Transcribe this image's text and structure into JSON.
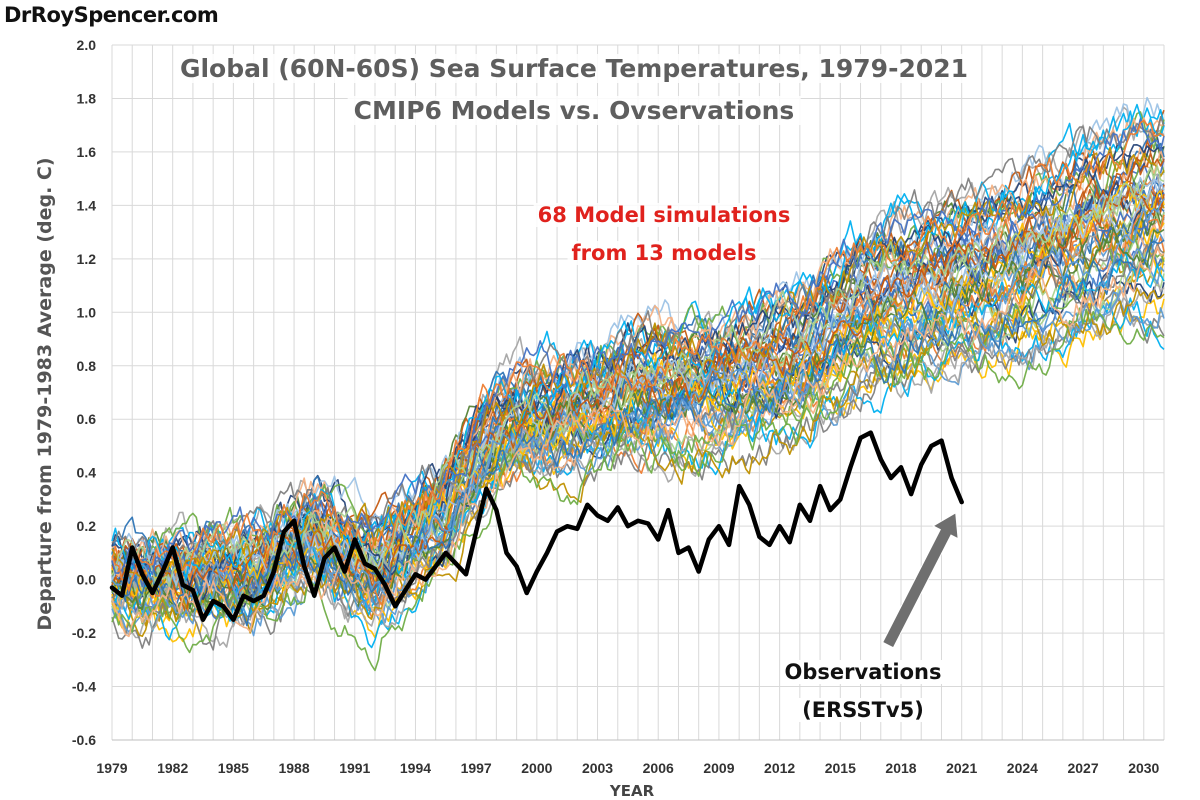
{
  "watermark": "DrRoySpencer.com",
  "chart_data": {
    "type": "line",
    "title": "Global (60N-60S) Sea Surface Temperatures, 1979-2021",
    "subtitle": "CMIP6 Models vs. Ovservations",
    "ylabel": "Departure from 1979-1983 Average (deg. C)",
    "xlabel": "YEAR",
    "xlim": [
      1979,
      2031
    ],
    "ylim": [
      -0.6,
      2.0
    ],
    "x_ticks": [
      "1979",
      "1982",
      "1985",
      "1988",
      "1991",
      "1994",
      "1997",
      "2000",
      "2003",
      "2006",
      "2009",
      "2012",
      "2015",
      "2018",
      "2021",
      "2024",
      "2027",
      "2030"
    ],
    "y_ticks": [
      "2.0",
      "1.8",
      "1.6",
      "1.4",
      "1.2",
      "1.0",
      "0.8",
      "0.6",
      "0.4",
      "0.2",
      "0.0",
      "-0.2",
      "-0.4",
      "-0.6"
    ],
    "grid": true,
    "annotations": [
      {
        "text_line1": "68 Model simulations",
        "text_line2": "from 13 models",
        "color": "#e0221d"
      },
      {
        "text_line1": "Observations",
        "text_line2": "(ERSSTv5)",
        "arrow_to": [
          2021.0,
          0.28
        ],
        "arrow_color": "#6f6f6f"
      }
    ],
    "model_ensemble": {
      "count": 68,
      "models": 13,
      "x_range": [
        1979,
        2031
      ],
      "palette": [
        "#4472c4",
        "#5b9bd5",
        "#ed7d31",
        "#f4b183",
        "#ffc000",
        "#a5a5a5",
        "#70ad47",
        "#548235",
        "#264478",
        "#9dc3e6",
        "#c55a11",
        "#2e75b6",
        "#00b0f0",
        "#bf9000",
        "#7f7f7f",
        "#a9d18e"
      ],
      "mean_trend_nodes": [
        [
          1979,
          0.0
        ],
        [
          1986,
          0.02
        ],
        [
          1989,
          0.18
        ],
        [
          1992,
          0.02
        ],
        [
          1995,
          0.22
        ],
        [
          1998,
          0.55
        ],
        [
          2002,
          0.62
        ],
        [
          2005,
          0.7
        ],
        [
          2009,
          0.72
        ],
        [
          2013,
          0.82
        ],
        [
          2016,
          1.0
        ],
        [
          2020,
          1.08
        ],
        [
          2024,
          1.18
        ],
        [
          2028,
          1.3
        ],
        [
          2031,
          1.38
        ]
      ],
      "spread_nodes": [
        [
          1979,
          0.14
        ],
        [
          1995,
          0.2
        ],
        [
          2005,
          0.24
        ],
        [
          2015,
          0.3
        ],
        [
          2031,
          0.42
        ]
      ]
    },
    "series": [
      {
        "name": "Observations (ERSSTv5)",
        "color": "#000000",
        "x": [
          1979.0,
          1979.5,
          1980.0,
          1980.5,
          1981.0,
          1981.5,
          1982.0,
          1982.5,
          1983.0,
          1983.5,
          1984.0,
          1984.5,
          1985.0,
          1985.5,
          1986.0,
          1986.5,
          1987.0,
          1987.5,
          1988.0,
          1988.5,
          1989.0,
          1989.5,
          1990.0,
          1990.5,
          1991.0,
          1991.5,
          1992.0,
          1992.5,
          1993.0,
          1993.5,
          1994.0,
          1994.5,
          1995.0,
          1995.5,
          1996.0,
          1996.5,
          1997.0,
          1997.5,
          1998.0,
          1998.5,
          1999.0,
          1999.5,
          2000.0,
          2000.5,
          2001.0,
          2001.5,
          2002.0,
          2002.5,
          2003.0,
          2003.5,
          2004.0,
          2004.5,
          2005.0,
          2005.5,
          2006.0,
          2006.5,
          2007.0,
          2007.5,
          2008.0,
          2008.5,
          2009.0,
          2009.5,
          2010.0,
          2010.5,
          2011.0,
          2011.5,
          2012.0,
          2012.5,
          2013.0,
          2013.5,
          2014.0,
          2014.5,
          2015.0,
          2015.5,
          2016.0,
          2016.5,
          2017.0,
          2017.5,
          2018.0,
          2018.5,
          2019.0,
          2019.5,
          2020.0,
          2020.5,
          2021.0
        ],
        "y": [
          -0.03,
          -0.06,
          0.12,
          0.02,
          -0.05,
          0.03,
          0.12,
          -0.02,
          -0.04,
          -0.15,
          -0.08,
          -0.1,
          -0.15,
          -0.06,
          -0.08,
          -0.06,
          0.03,
          0.18,
          0.22,
          0.05,
          -0.06,
          0.08,
          0.12,
          0.03,
          0.15,
          0.06,
          0.04,
          -0.02,
          -0.1,
          -0.04,
          0.02,
          0.0,
          0.05,
          0.1,
          0.06,
          0.02,
          0.18,
          0.34,
          0.26,
          0.1,
          0.05,
          -0.05,
          0.03,
          0.1,
          0.18,
          0.2,
          0.19,
          0.28,
          0.24,
          0.22,
          0.27,
          0.2,
          0.22,
          0.21,
          0.15,
          0.26,
          0.1,
          0.12,
          0.03,
          0.15,
          0.2,
          0.13,
          0.35,
          0.28,
          0.16,
          0.13,
          0.2,
          0.14,
          0.28,
          0.22,
          0.35,
          0.26,
          0.3,
          0.42,
          0.53,
          0.55,
          0.45,
          0.38,
          0.42,
          0.32,
          0.43,
          0.5,
          0.52,
          0.38,
          0.29
        ]
      }
    ]
  }
}
